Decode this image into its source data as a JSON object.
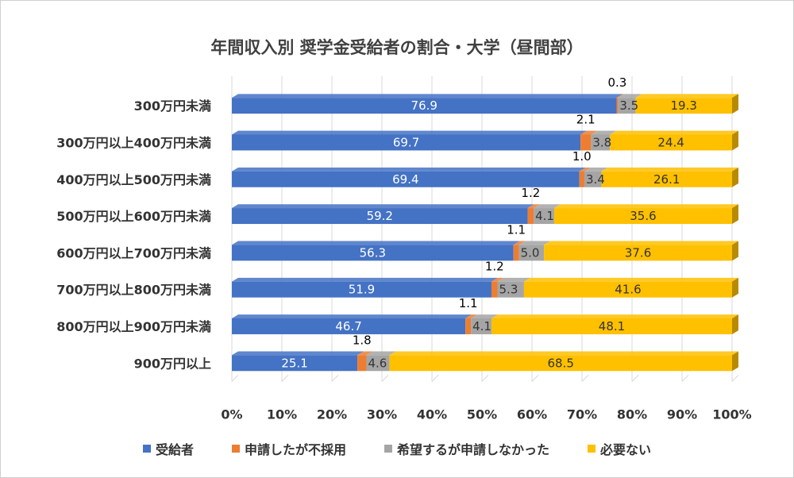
{
  "chart_data": {
    "type": "bar",
    "orientation": "horizontal",
    "stacked": "percent",
    "title": "年間収入別 奨学金受給者の割合・大学（昼間部）",
    "categories": [
      "300万円未満",
      "300万円以上400万円未満",
      "400万円以上500万円未満",
      "500万円以上600万円未満",
      "600万円以上700万円未満",
      "700万円以上800万円未満",
      "800万円以上900万円未満",
      "900万円以上"
    ],
    "series": [
      {
        "name": "受給者",
        "color": "#4472c4",
        "label_color": "#ffffff",
        "values": [
          76.9,
          69.7,
          69.4,
          59.2,
          56.3,
          51.9,
          46.7,
          25.1
        ]
      },
      {
        "name": "申請したが不採用",
        "color": "#ed7d31",
        "label_color": "#000000",
        "values": [
          0.3,
          2.1,
          1.0,
          1.2,
          1.1,
          1.2,
          1.1,
          1.8
        ]
      },
      {
        "name": "希望するが申請しなかった",
        "color": "#a5a5a5",
        "label_color": "#333333",
        "values": [
          3.5,
          3.8,
          3.4,
          4.1,
          5.0,
          5.3,
          4.1,
          4.6
        ]
      },
      {
        "name": "必要ない",
        "color": "#ffc000",
        "label_color": "#333333",
        "values": [
          19.3,
          24.4,
          26.1,
          35.6,
          37.6,
          41.6,
          48.1,
          68.5
        ]
      }
    ],
    "xlim": [
      0,
      100
    ],
    "x_ticks": [
      "0%",
      "10%",
      "20%",
      "30%",
      "40%",
      "50%",
      "60%",
      "70%",
      "80%",
      "90%",
      "100%"
    ],
    "grid": "vertical",
    "legend_position": "bottom"
  }
}
